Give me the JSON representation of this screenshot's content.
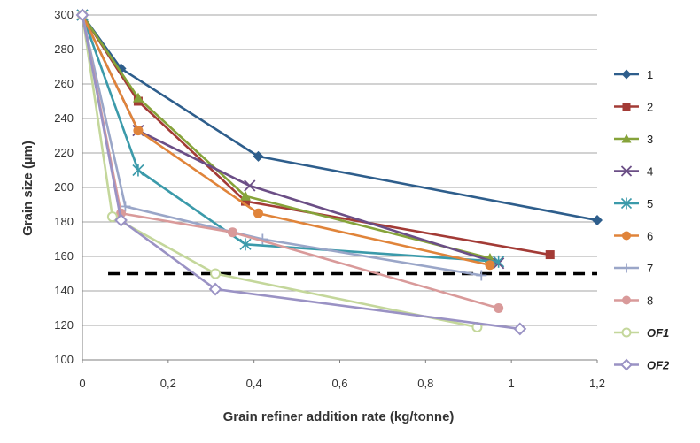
{
  "chart_data": {
    "type": "line",
    "title": "",
    "xlabel": "Grain refiner addition rate (kg/tonne)",
    "ylabel": "Grain size (µm)",
    "xlim": [
      0,
      1.2
    ],
    "ylim": [
      100,
      300
    ],
    "x_ticks": [
      0,
      0.2,
      0.4,
      0.6,
      0.8,
      1,
      1.2
    ],
    "x_tick_labels": [
      "0",
      "0,2",
      "0,4",
      "0,6",
      "0,8",
      "1",
      "1,2"
    ],
    "y_ticks": [
      100,
      120,
      140,
      160,
      180,
      200,
      220,
      240,
      260,
      280,
      300
    ],
    "y_tick_labels": [
      "100",
      "120",
      "140",
      "160",
      "180",
      "200",
      "220",
      "240",
      "260",
      "280",
      "300"
    ],
    "grid": "horizontal",
    "legend_position": "right",
    "reference_line": {
      "y": 150,
      "x_range": [
        0.06,
        1.2
      ],
      "style": "dashed",
      "color": "#000000"
    },
    "series": [
      {
        "name": "1",
        "color": "#2e5e8c",
        "marker": "diamond",
        "x": [
          0,
          0.09,
          0.41,
          1.2
        ],
        "y": [
          300,
          269,
          218,
          181
        ]
      },
      {
        "name": "2",
        "color": "#a33b36",
        "marker": "square",
        "x": [
          0,
          0.13,
          0.38,
          1.09
        ],
        "y": [
          300,
          250,
          192,
          161
        ]
      },
      {
        "name": "3",
        "color": "#86a33a",
        "marker": "triangle",
        "x": [
          0,
          0.13,
          0.38,
          0.95
        ],
        "y": [
          300,
          252,
          195,
          159
        ]
      },
      {
        "name": "4",
        "color": "#6b4e86",
        "marker": "x",
        "x": [
          0,
          0.13,
          0.39,
          0.97
        ],
        "y": [
          300,
          233,
          201,
          156
        ]
      },
      {
        "name": "5",
        "color": "#3b9aaa",
        "marker": "star",
        "x": [
          0,
          0.13,
          0.38,
          0.97
        ],
        "y": [
          300,
          210,
          167,
          157
        ]
      },
      {
        "name": "6",
        "color": "#e0843a",
        "marker": "circle",
        "x": [
          0,
          0.13,
          0.41,
          0.95
        ],
        "y": [
          300,
          233,
          185,
          155
        ]
      },
      {
        "name": "7",
        "color": "#9aa6c8",
        "marker": "plus",
        "x": [
          0,
          0.1,
          0.42,
          0.93
        ],
        "y": [
          300,
          189,
          170,
          149
        ]
      },
      {
        "name": "8",
        "color": "#d99a9a",
        "marker": "circle",
        "x": [
          0,
          0.09,
          0.35,
          0.97
        ],
        "y": [
          300,
          185,
          174,
          130
        ]
      },
      {
        "name": "OF1",
        "color": "#c4d79b",
        "marker": "circle-open",
        "x": [
          0,
          0.07,
          0.31,
          0.92
        ],
        "y": [
          300,
          183,
          150,
          119
        ]
      },
      {
        "name": "OF2",
        "color": "#9a92c4",
        "marker": "diamond-open",
        "x": [
          0,
          0.09,
          0.31,
          1.02
        ],
        "y": [
          300,
          181,
          141,
          118
        ]
      }
    ]
  }
}
